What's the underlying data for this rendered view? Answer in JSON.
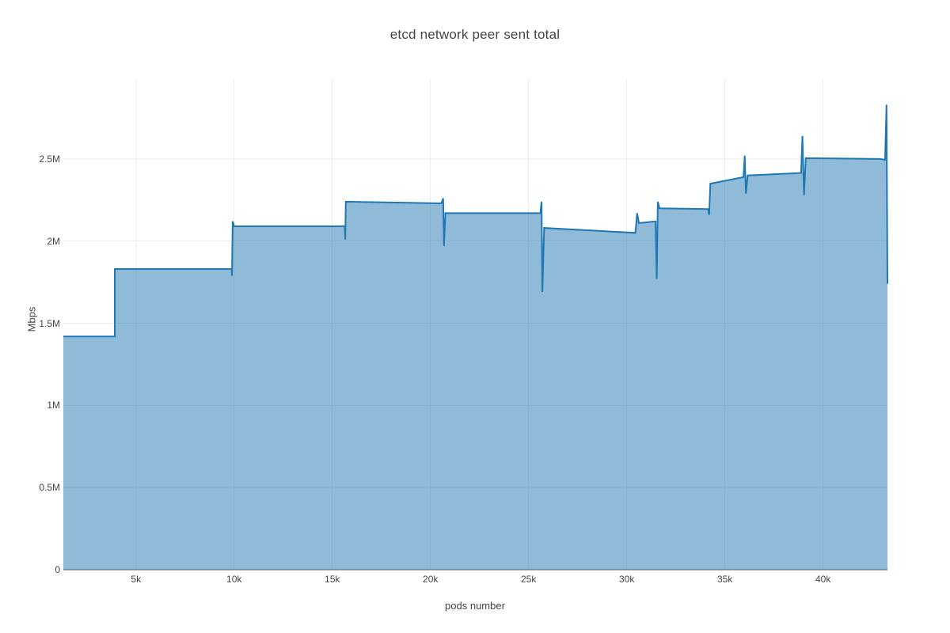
{
  "chart_data": {
    "type": "area",
    "title": "etcd network peer sent total",
    "xlabel": "pods number",
    "ylabel": "Mbps",
    "xlim": [
      1300,
      43280
    ],
    "ylim": [
      0,
      2986000
    ],
    "grid": true,
    "legend": false,
    "colors": {
      "line": "#1f77b4",
      "fill": "rgba(31,119,180,0.5)",
      "grid": "#ebebeb",
      "zeroline": "#a6a6a6",
      "text": "#444444",
      "background": "#ffffff"
    },
    "x_ticks": [
      {
        "value": 5000,
        "label": "5k"
      },
      {
        "value": 10000,
        "label": "10k"
      },
      {
        "value": 15000,
        "label": "15k"
      },
      {
        "value": 20000,
        "label": "20k"
      },
      {
        "value": 25000,
        "label": "25k"
      },
      {
        "value": 30000,
        "label": "30k"
      },
      {
        "value": 35000,
        "label": "35k"
      },
      {
        "value": 40000,
        "label": "40k"
      }
    ],
    "y_ticks": [
      {
        "value": 0,
        "label": "0"
      },
      {
        "value": 500000,
        "label": "0.5M"
      },
      {
        "value": 1000000,
        "label": "1M"
      },
      {
        "value": 1500000,
        "label": "1.5M"
      },
      {
        "value": 2000000,
        "label": "2M"
      },
      {
        "value": 2500000,
        "label": "2.5M"
      }
    ],
    "series": [
      {
        "name": "etcd network peer sent total",
        "points": [
          [
            1300,
            1420000
          ],
          [
            3920,
            1420000
          ],
          [
            3920,
            1830000
          ],
          [
            9870,
            1830000
          ],
          [
            9890,
            1790000
          ],
          [
            9925,
            2120000
          ],
          [
            10000,
            2090000
          ],
          [
            15640,
            2090000
          ],
          [
            15660,
            2010000
          ],
          [
            15690,
            2240000
          ],
          [
            20550,
            2230000
          ],
          [
            20650,
            2260000
          ],
          [
            20690,
            1970000
          ],
          [
            20760,
            2170000
          ],
          [
            25600,
            2170000
          ],
          [
            25660,
            2240000
          ],
          [
            25700,
            1690000
          ],
          [
            25790,
            2080000
          ],
          [
            30440,
            2050000
          ],
          [
            30530,
            2170000
          ],
          [
            30620,
            2110000
          ],
          [
            31470,
            2120000
          ],
          [
            31530,
            1770000
          ],
          [
            31580,
            2240000
          ],
          [
            31670,
            2200000
          ],
          [
            34140,
            2195000
          ],
          [
            34200,
            2160000
          ],
          [
            34260,
            2350000
          ],
          [
            35950,
            2390000
          ],
          [
            36010,
            2520000
          ],
          [
            36070,
            2290000
          ],
          [
            36160,
            2400000
          ],
          [
            38880,
            2415000
          ],
          [
            38950,
            2640000
          ],
          [
            39030,
            2280000
          ],
          [
            39120,
            2505000
          ],
          [
            42900,
            2500000
          ],
          [
            43160,
            2495000
          ],
          [
            43230,
            2830000
          ],
          [
            43280,
            1740000
          ]
        ]
      }
    ]
  }
}
